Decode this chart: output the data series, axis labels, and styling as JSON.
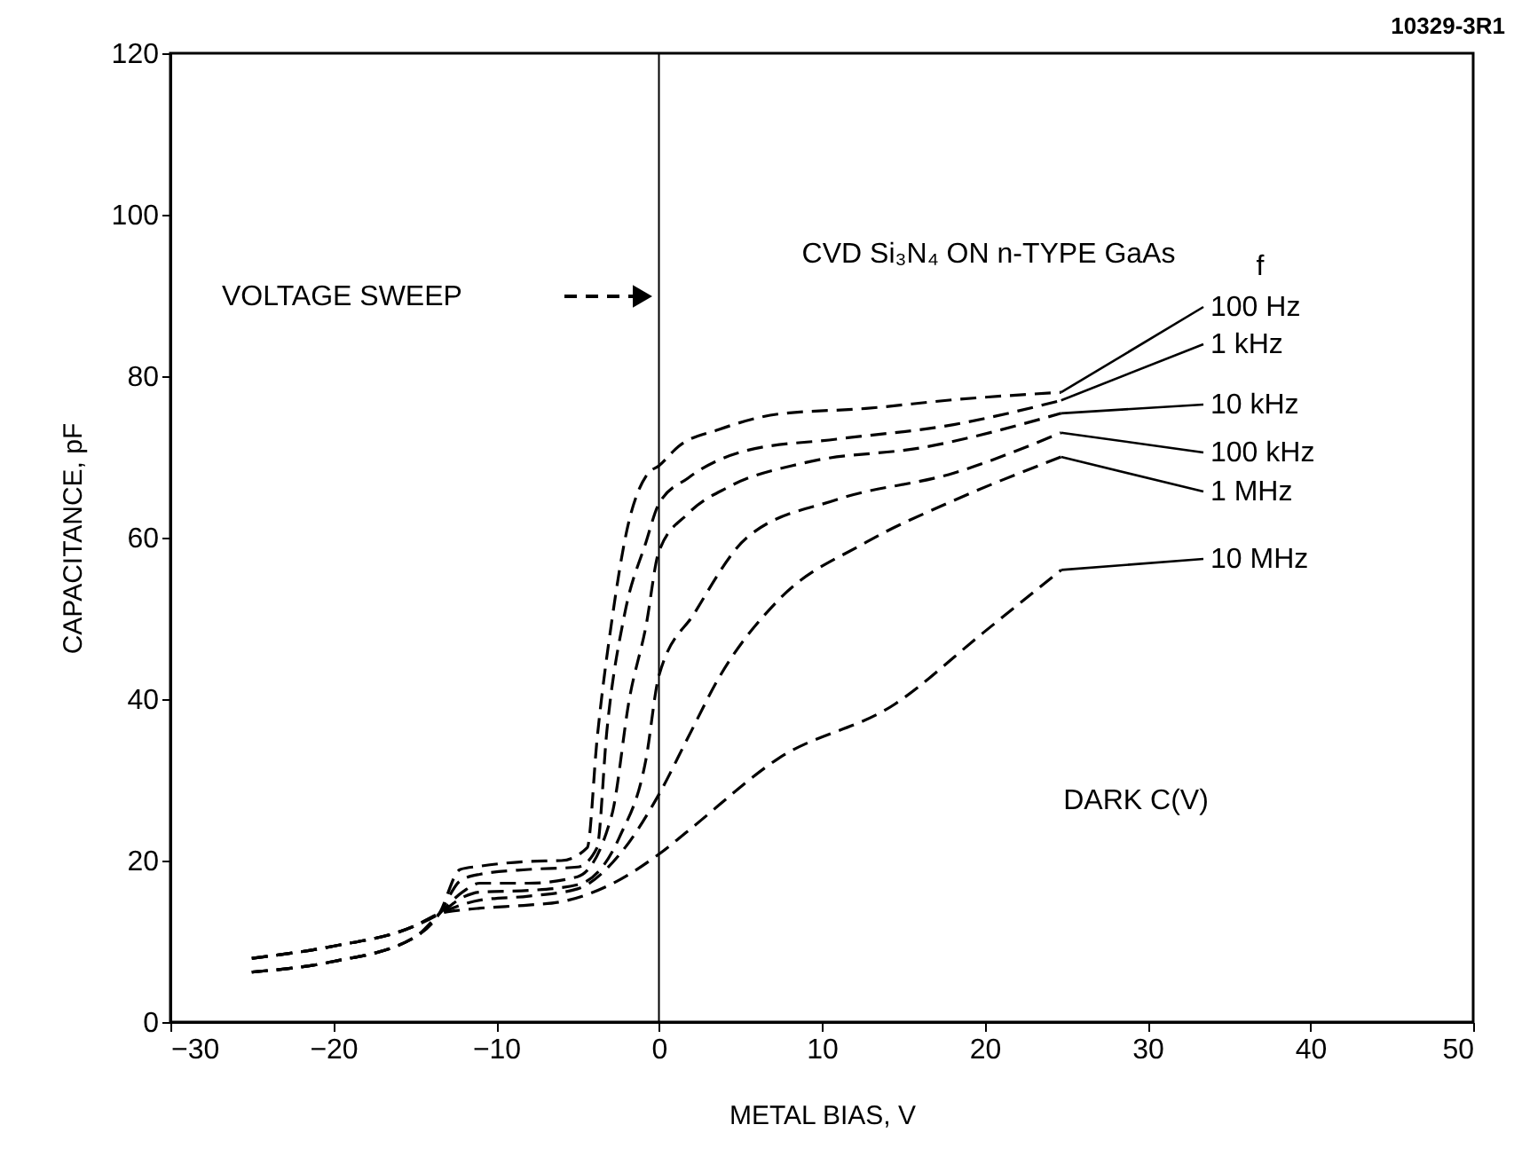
{
  "chart_data": {
    "type": "line",
    "xlabel": "METAL BIAS, V",
    "ylabel": "CAPACITANCE, pF",
    "legend_title": "f",
    "xlim": [
      -30,
      50
    ],
    "ylim": [
      0,
      120
    ],
    "xticks": [
      -30,
      -20,
      -10,
      0,
      10,
      20,
      30,
      40,
      50
    ],
    "yticks": [
      0,
      20,
      40,
      60,
      80,
      100,
      120
    ],
    "grid": false,
    "line_style": "dashed",
    "marker": "none",
    "annotations": [
      "CVD Si₃N₄ ON n-TYPE GaAs",
      "VOLTAGE SWEEP",
      "DARK C(V)",
      "10329-3R1"
    ],
    "ref_lines": [
      {
        "axis": "x",
        "value": 0,
        "label": null,
        "color": "#000000"
      }
    ],
    "series": [
      {
        "name": "100 Hz",
        "color": "#000000",
        "x": [
          -25,
          -20,
          -15,
          -13.5,
          -12.2,
          -11,
          -8,
          -6,
          -4.4,
          -3.8,
          -2.9,
          -2.0,
          -0.7,
          0,
          1.2,
          3.7,
          7.3,
          12.7,
          18.2,
          24.7
        ],
        "values": [
          6.2,
          7.5,
          10.5,
          13.4,
          18.9,
          19.3,
          19.9,
          20.0,
          21.6,
          35,
          49.6,
          60.6,
          67.9,
          68.9,
          71.3,
          73.4,
          75.3,
          76,
          77.1,
          78
        ]
      },
      {
        "name": "1 kHz",
        "color": "#000000",
        "x": [
          -25,
          -20,
          -15,
          -13.5,
          -12.2,
          -11,
          -8,
          -5,
          -3.8,
          -3.2,
          -2.1,
          -0.8,
          0,
          1.8,
          5.4,
          10.9,
          18.1,
          24.7
        ],
        "values": [
          6.2,
          7.5,
          10.5,
          13.4,
          17.5,
          18.3,
          18.9,
          19.2,
          21.6,
          36,
          50.6,
          59.4,
          64.2,
          67.4,
          70.8,
          72.2,
          74,
          77
        ]
      },
      {
        "name": "10 kHz",
        "color": "#000000",
        "x": [
          -25,
          -20,
          -15,
          -13.5,
          -12,
          -11,
          -8,
          -5,
          -2.9,
          -1.8,
          -0.8,
          0,
          1.8,
          4.3,
          9,
          16.3,
          24.7
        ],
        "values": [
          6.2,
          7.5,
          10.5,
          13.4,
          16.2,
          17.2,
          17.2,
          18,
          25.6,
          40.2,
          49,
          58.3,
          63,
          66.3,
          69.3,
          71.2,
          75.4
        ]
      },
      {
        "name": "100 kHz",
        "color": "#000000",
        "x": [
          -25,
          -20,
          -15,
          -13.5,
          -12,
          -11,
          -8,
          -5,
          -2.4,
          -0.8,
          0,
          2.2,
          5.4,
          10.9,
          18.1,
          24.7
        ],
        "values": [
          7.9,
          9.4,
          11.9,
          13.4,
          15.5,
          16.1,
          16.3,
          17,
          23,
          32.5,
          42.9,
          50.7,
          60,
          64.7,
          68,
          73
        ]
      },
      {
        "name": "1 MHz",
        "color": "#000000",
        "x": [
          -25,
          -20,
          -15,
          -13.5,
          -12,
          -11,
          -8,
          -5,
          -2.4,
          0,
          1.8,
          3.7,
          7.3,
          12.7,
          18.1,
          24.7
        ],
        "values": [
          7.9,
          9.4,
          11.9,
          13.4,
          14.6,
          15.1,
          15.6,
          16.5,
          20.8,
          28.2,
          35.3,
          42.7,
          52.2,
          59.4,
          64.6,
          70
        ]
      },
      {
        "name": "10 MHz",
        "color": "#000000",
        "x": [
          -25,
          -20,
          -15,
          -13.5,
          -12,
          -11,
          -8,
          -6,
          -3,
          0,
          1.8,
          7.3,
          14.5,
          19.9,
          24.7
        ],
        "values": [
          7.9,
          9.4,
          11.9,
          13.4,
          13.9,
          14.1,
          14.5,
          14.9,
          17,
          20.8,
          23.7,
          32.6,
          39.4,
          48.2,
          56
        ]
      }
    ]
  }
}
